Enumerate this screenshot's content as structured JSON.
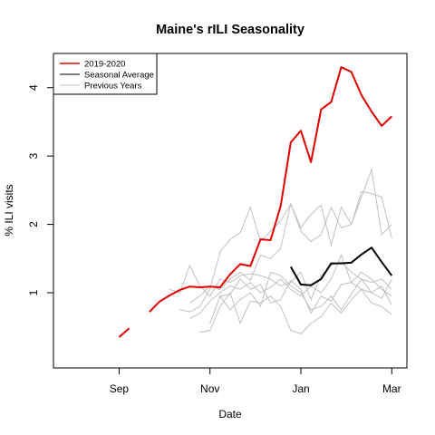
{
  "chart_data": {
    "type": "line",
    "title": "Maine's rILI Seasonality",
    "xlabel": "Date",
    "ylabel": "% ILI visits",
    "x_unit": "week",
    "xlim": [
      -4.5,
      30.5
    ],
    "ylim": [
      -0.1,
      4.5
    ],
    "x_ticks": [
      {
        "label": "Sep",
        "value": 2
      },
      {
        "label": "Nov",
        "value": 11
      },
      {
        "label": "Jan",
        "value": 20
      },
      {
        "label": "Mar",
        "value": 29
      }
    ],
    "y_ticks": [
      1,
      2,
      3,
      4
    ],
    "grid": false,
    "legend_position": "top-left",
    "legend": [
      {
        "label": "2019-2020",
        "color": "#e00000"
      },
      {
        "label": "Seasonal Average",
        "color": "#000000"
      },
      {
        "label": "Previous Years",
        "color": "#c0c0c0"
      }
    ],
    "current_season": {
      "name": "2019-2020",
      "color": "#e00000",
      "segments": [
        [
          [
            2,
            0.35
          ],
          [
            3,
            0.48
          ]
        ],
        [
          [
            5,
            0.72
          ],
          [
            6,
            0.87
          ],
          [
            7,
            0.96
          ],
          [
            8,
            1.04
          ],
          [
            9,
            1.09
          ],
          [
            10,
            1.08
          ],
          [
            11,
            1.09
          ],
          [
            12,
            1.08
          ],
          [
            13,
            1.27
          ],
          [
            14,
            1.42
          ],
          [
            15,
            1.39
          ],
          [
            16,
            1.78
          ],
          [
            17,
            1.77
          ],
          [
            18,
            2.27
          ],
          [
            19,
            3.2
          ],
          [
            20,
            3.37
          ],
          [
            21,
            2.91
          ],
          [
            22,
            3.68
          ],
          [
            23,
            3.79
          ],
          [
            24,
            4.3
          ],
          [
            25,
            4.23
          ],
          [
            26,
            3.89
          ],
          [
            27,
            3.65
          ],
          [
            28,
            3.44
          ],
          [
            29,
            3.58
          ]
        ]
      ]
    },
    "seasonal_average": {
      "name": "Seasonal Average",
      "color": "#000000",
      "points": [
        [
          19,
          1.38
        ],
        [
          20,
          1.12
        ],
        [
          21,
          1.11
        ],
        [
          22,
          1.2
        ],
        [
          23,
          1.43
        ],
        [
          24,
          1.43
        ],
        [
          25,
          1.44
        ],
        [
          26,
          1.56
        ],
        [
          27,
          1.66
        ],
        [
          28,
          1.45
        ],
        [
          29,
          1.25
        ]
      ]
    },
    "previous_years": {
      "name": "Previous Years",
      "color": "#c0c0c0",
      "series": [
        [
          [
            8,
            0.75
          ],
          [
            9,
            0.72
          ],
          [
            10,
            0.8
          ],
          [
            11,
            1.05
          ],
          [
            12,
            1.6
          ],
          [
            13,
            1.78
          ],
          [
            14,
            1.88
          ],
          [
            15,
            2.25
          ],
          [
            16,
            1.75
          ],
          [
            17,
            1.9
          ],
          [
            18,
            2.05
          ],
          [
            19,
            2.3
          ],
          [
            20,
            1.95
          ],
          [
            21,
            2.15
          ],
          [
            22,
            2.28
          ],
          [
            23,
            1.7
          ],
          [
            24,
            2.25
          ],
          [
            25,
            2.0
          ],
          [
            26,
            2.48
          ],
          [
            27,
            2.45
          ],
          [
            28,
            2.4
          ],
          [
            29,
            1.8
          ]
        ],
        [
          [
            9,
            0.85
          ],
          [
            10,
            0.95
          ],
          [
            11,
            1.1
          ],
          [
            12,
            1.05
          ],
          [
            13,
            1.2
          ],
          [
            14,
            1.3
          ],
          [
            15,
            1.18
          ],
          [
            16,
            1.55
          ],
          [
            17,
            1.5
          ],
          [
            18,
            1.65
          ],
          [
            19,
            2.3
          ],
          [
            20,
            1.9
          ],
          [
            21,
            1.75
          ],
          [
            22,
            1.85
          ],
          [
            23,
            2.25
          ],
          [
            24,
            1.95
          ],
          [
            25,
            2.0
          ],
          [
            26,
            2.4
          ],
          [
            27,
            2.8
          ],
          [
            28,
            1.85
          ],
          [
            29,
            2.0
          ]
        ],
        [
          [
            7,
            1.05
          ],
          [
            8,
            1.0
          ],
          [
            9,
            1.4
          ],
          [
            10,
            1.1
          ],
          [
            11,
            0.95
          ],
          [
            12,
            1.2
          ],
          [
            13,
            1.15
          ],
          [
            14,
            1.25
          ],
          [
            15,
            1.28
          ],
          [
            16,
            1.25
          ],
          [
            17,
            1.2
          ],
          [
            18,
            1.1
          ],
          [
            19,
            1.15
          ],
          [
            20,
            1.3
          ],
          [
            21,
            0.9
          ],
          [
            22,
            1.25
          ],
          [
            23,
            1.4
          ],
          [
            24,
            1.45
          ],
          [
            25,
            1.3
          ],
          [
            26,
            1.2
          ],
          [
            27,
            1.15
          ],
          [
            28,
            1.2
          ],
          [
            29,
            1.05
          ]
        ],
        [
          [
            9,
            0.62
          ],
          [
            10,
            0.7
          ],
          [
            11,
            0.88
          ],
          [
            12,
            1.0
          ],
          [
            13,
            1.1
          ],
          [
            14,
            1.05
          ],
          [
            15,
            1.15
          ],
          [
            16,
            1.0
          ],
          [
            17,
            1.08
          ],
          [
            18,
            1.2
          ],
          [
            19,
            1.05
          ],
          [
            20,
            0.95
          ],
          [
            21,
            1.1
          ],
          [
            22,
            1.0
          ],
          [
            23,
            1.2
          ],
          [
            24,
            1.55
          ],
          [
            25,
            1.15
          ],
          [
            26,
            1.3
          ],
          [
            27,
            1.2
          ],
          [
            28,
            1.05
          ],
          [
            29,
            0.95
          ]
        ],
        [
          [
            10,
            0.42
          ],
          [
            11,
            0.45
          ],
          [
            12,
            0.8
          ],
          [
            13,
            1.0
          ],
          [
            14,
            0.55
          ],
          [
            15,
            0.88
          ],
          [
            16,
            0.85
          ],
          [
            17,
            0.95
          ],
          [
            18,
            0.8
          ],
          [
            19,
            0.45
          ],
          [
            20,
            0.4
          ],
          [
            21,
            0.55
          ],
          [
            22,
            0.65
          ],
          [
            23,
            0.85
          ],
          [
            24,
            0.7
          ],
          [
            25,
            0.9
          ],
          [
            26,
            1.05
          ],
          [
            27,
            0.85
          ],
          [
            28,
            0.8
          ],
          [
            29,
            0.68
          ]
        ],
        [
          [
            11,
            0.55
          ],
          [
            12,
            0.95
          ],
          [
            13,
            0.75
          ],
          [
            14,
            0.9
          ],
          [
            15,
            1.0
          ],
          [
            16,
            0.8
          ],
          [
            17,
            1.3
          ],
          [
            18,
            1.25
          ],
          [
            19,
            1.1
          ],
          [
            20,
            1.0
          ],
          [
            21,
            0.75
          ],
          [
            22,
            0.8
          ],
          [
            23,
            0.95
          ],
          [
            24,
            0.75
          ],
          [
            25,
            0.98
          ],
          [
            26,
            1.2
          ],
          [
            27,
            1.0
          ],
          [
            28,
            0.92
          ],
          [
            29,
            1.2
          ]
        ],
        [
          [
            12,
            0.95
          ],
          [
            13,
            0.98
          ],
          [
            14,
            1.2
          ],
          [
            15,
            1.05
          ],
          [
            16,
            1.12
          ],
          [
            17,
            0.85
          ],
          [
            18,
            0.9
          ],
          [
            19,
            1.18
          ],
          [
            20,
            1.05
          ],
          [
            21,
            0.7
          ],
          [
            22,
            0.95
          ],
          [
            23,
            0.88
          ],
          [
            24,
            1.12
          ],
          [
            25,
            1.15
          ],
          [
            26,
            1.05
          ],
          [
            27,
            1.0
          ],
          [
            28,
            1.1
          ],
          [
            29,
            0.82
          ]
        ]
      ]
    }
  }
}
